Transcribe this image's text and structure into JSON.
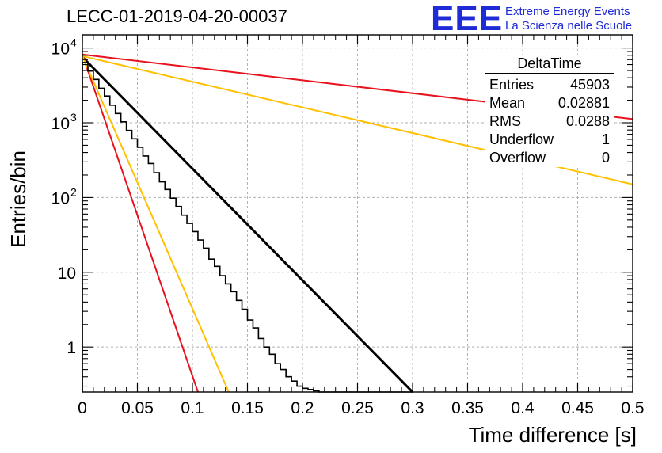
{
  "header": {
    "title": "LECC-01-2019-04-20-00037",
    "logo_text": "EEE",
    "logo_line1": "Extreme Energy Events",
    "logo_line2": "La Scienza nelle Scuole"
  },
  "stats_box": {
    "title": "DeltaTime",
    "rows": [
      {
        "label": "Entries",
        "value": "45903"
      },
      {
        "label": "Mean",
        "value": "0.02881"
      },
      {
        "label": "RMS",
        "value": "0.0288"
      },
      {
        "label": "Underflow",
        "value": "1"
      },
      {
        "label": "Overflow",
        "value": "0"
      }
    ]
  },
  "colors": {
    "histogram": "#000000",
    "fit": "#000000",
    "red_curves": "#e8121e",
    "yellow_curves": "#ffc000",
    "grid": "#b0b0b0",
    "logo": "#1f2bd6"
  },
  "chart_data": {
    "type": "histogram",
    "xlabel": "Time difference [s]",
    "ylabel": "Entries/bin",
    "xlim": [
      0,
      0.5
    ],
    "ylim": [
      0.25,
      15000
    ],
    "yscale": "log",
    "grid": true,
    "legend": "stats box top-right",
    "x_ticks": [
      "0",
      "0.05",
      "0.1",
      "0.15",
      "0.2",
      "0.25",
      "0.3",
      "0.35",
      "0.4",
      "0.45",
      "0.5"
    ],
    "y_ticks": [
      {
        "value": 1,
        "label": "1"
      },
      {
        "value": 10,
        "label": "10"
      },
      {
        "value": 100,
        "label": "10",
        "exp": "2"
      },
      {
        "value": 1000,
        "label": "10",
        "exp": "3"
      },
      {
        "value": 10000,
        "label": "10",
        "exp": "4"
      }
    ],
    "bin_width": 0.005,
    "histogram_counts": [
      6400,
      4920,
      3800,
      2900,
      2280,
      1720,
      1330,
      1030,
      790,
      610,
      470,
      360,
      285,
      215,
      162,
      128,
      98,
      76,
      58,
      45,
      35,
      27,
      21,
      15,
      12,
      9,
      7,
      5.5,
      4.2,
      3.2,
      2.3,
      1.8,
      1.3,
      1,
      0.8,
      0.6,
      0.5,
      0.4,
      0.35,
      0.3,
      0.28,
      0.27,
      0.26,
      0.25,
      0.25,
      0.25,
      0.25,
      0.25,
      0.25,
      0.25,
      0.25,
      0.25,
      0.25,
      0.25,
      0.25,
      0.25,
      0.25,
      0.25,
      0.25,
      0.25
    ],
    "series": [
      {
        "kind": "fit",
        "color": "#000000",
        "x": [
          0,
          0.3
        ],
        "y": [
          7600,
          0.25
        ]
      },
      {
        "kind": "ref-fast",
        "color": "#e8121e",
        "x": [
          0,
          0.105
        ],
        "y": [
          8200,
          0.25
        ]
      },
      {
        "kind": "ref-fast",
        "color": "#ffc000",
        "x": [
          0,
          0.133
        ],
        "y": [
          7800,
          0.25
        ]
      },
      {
        "kind": "ref-slow",
        "color": "#e8121e",
        "x": [
          0,
          0.5
        ],
        "y": [
          8200,
          1120
        ]
      },
      {
        "kind": "ref-slow",
        "color": "#ffc000",
        "x": [
          0,
          0.5
        ],
        "y": [
          7800,
          150
        ]
      }
    ]
  }
}
